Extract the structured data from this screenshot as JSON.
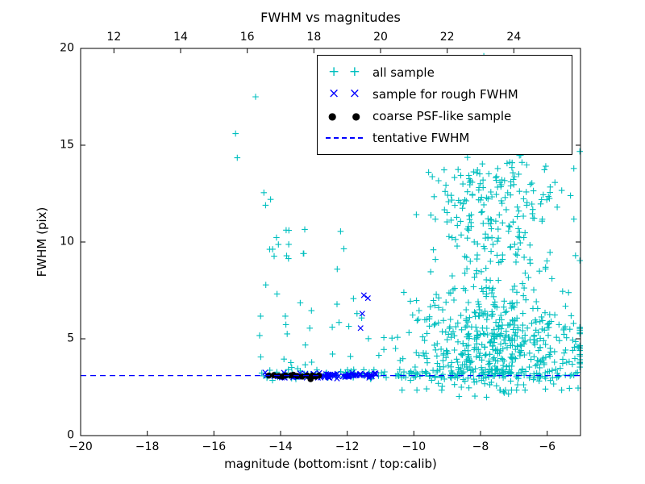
{
  "chart_data": {
    "type": "scatter",
    "title": "FWHM vs magnitudes",
    "xlabel": "magnitude (bottom:isnt / top:calib)",
    "ylabel": "FWHM (pix)",
    "xlim": [
      -20,
      -5
    ],
    "ylim": [
      0,
      20
    ],
    "x_ticks": [
      -20,
      -18,
      -16,
      -14,
      -12,
      -10,
      -8,
      -6
    ],
    "y_ticks": [
      0,
      5,
      10,
      15,
      20
    ],
    "top_ticks": [
      12,
      14,
      16,
      18,
      20,
      22,
      24
    ],
    "top_axis_offset": 31,
    "grid": false,
    "legend_position": "upper right",
    "tentative_fwhm_y": 3.1,
    "colors": {
      "all_sample": "#00bfbf",
      "rough_fwhm": "#0000ff",
      "psf_sample": "#000000",
      "tentative_line": "#0000ff",
      "axis": "#000000",
      "background": "#ffffff"
    },
    "series": [
      {
        "name": "all sample",
        "marker": "plus",
        "color": "#00bfbf",
        "seed": 42,
        "clusters": [
          {
            "count": 170,
            "x": {
              "dist": "uniform",
              "min": -14.6,
              "max": -5.05
            },
            "y": {
              "dist": "normal",
              "mean": 3.15,
              "sd": 0.13,
              "min": 2.8,
              "max": 3.6
            }
          },
          {
            "count": 26,
            "x": {
              "dist": "uniform",
              "min": -14.85,
              "max": -13.25
            },
            "y": {
              "dist": "uniform",
              "min": 3.4,
              "max": 10.8
            }
          },
          {
            "count": 16,
            "x": {
              "dist": "uniform",
              "min": -13.2,
              "max": -11.0
            },
            "y": {
              "dist": "uniform",
              "min": 3.4,
              "max": 7.5
            }
          },
          {
            "count": 430,
            "x": {
              "dist": "normal",
              "mean": -7.5,
              "sd": 1.3,
              "min": -10.9,
              "max": -5.02
            },
            "y": {
              "dist": "normal",
              "mean": 4.4,
              "sd": 1.15,
              "min": 2.35,
              "max": 8.6
            }
          },
          {
            "count": 150,
            "x": {
              "dist": "normal",
              "mean": -7.7,
              "sd": 1.15,
              "min": -10.6,
              "max": -5.02
            },
            "y": {
              "dist": "uniform",
              "min": 5.5,
              "max": 11.2
            }
          },
          {
            "count": 160,
            "x": {
              "dist": "normal",
              "mean": -7.55,
              "sd": 1.0,
              "min": -10.2,
              "max": -5.02
            },
            "y": {
              "dist": "normal",
              "mean": 12.6,
              "sd": 1.35,
              "min": 10.2,
              "max": 15.45
            }
          },
          {
            "count": 12,
            "x": {
              "dist": "normal",
              "mean": -7.2,
              "sd": 1.2,
              "min": -10.0,
              "max": -5.05
            },
            "y": {
              "dist": "uniform",
              "min": 1.9,
              "max": 2.7
            }
          }
        ],
        "points": [
          [
            -15.35,
            15.6
          ],
          [
            -15.3,
            14.35
          ],
          [
            -14.75,
            17.5
          ],
          [
            -14.5,
            12.55
          ],
          [
            -14.45,
            11.9
          ],
          [
            -14.3,
            12.2
          ],
          [
            -13.75,
            10.6
          ],
          [
            -12.2,
            10.55
          ],
          [
            -12.1,
            9.65
          ],
          [
            -12.3,
            8.6
          ],
          [
            -12.45,
            5.6
          ],
          [
            -7.9,
            19.6
          ],
          [
            -7.4,
            16.2
          ],
          [
            -6.9,
            15.8
          ],
          [
            -5.2,
            13.8
          ],
          [
            -5.3,
            12.4
          ],
          [
            -5.15,
            9.3
          ],
          [
            -10.3,
            7.4
          ],
          [
            -10.55,
            4.5
          ]
        ]
      },
      {
        "name": "sample for rough FWHM",
        "marker": "x",
        "color": "#0000ff",
        "seed": 7,
        "clusters": [
          {
            "count": 80,
            "x": {
              "dist": "uniform",
              "min": -14.5,
              "max": -11.02
            },
            "y": {
              "dist": "normal",
              "mean": 3.1,
              "sd": 0.07,
              "min": 2.95,
              "max": 3.3
            }
          }
        ],
        "points": [
          [
            -11.5,
            7.25
          ],
          [
            -11.38,
            7.1
          ],
          [
            -11.55,
            6.3
          ],
          [
            -11.6,
            5.55
          ]
        ]
      },
      {
        "name": "coarse PSF-like sample",
        "marker": "dot",
        "color": "#000000",
        "points": [
          [
            -14.35,
            3.1
          ],
          [
            -14.2,
            3.12
          ],
          [
            -14.05,
            3.08
          ],
          [
            -13.95,
            3.05
          ],
          [
            -13.85,
            3.1
          ],
          [
            -13.7,
            3.1
          ],
          [
            -13.62,
            3.14
          ],
          [
            -13.5,
            3.08
          ],
          [
            -13.35,
            3.05
          ],
          [
            -13.2,
            3.1
          ],
          [
            -13.1,
            2.92
          ],
          [
            -13.05,
            3.1
          ],
          [
            -12.95,
            3.05
          ],
          [
            -12.85,
            3.1
          ]
        ]
      },
      {
        "name": "tentative FWHM",
        "marker": "dashed-line",
        "color": "#0000ff",
        "y": 3.1
      }
    ]
  }
}
